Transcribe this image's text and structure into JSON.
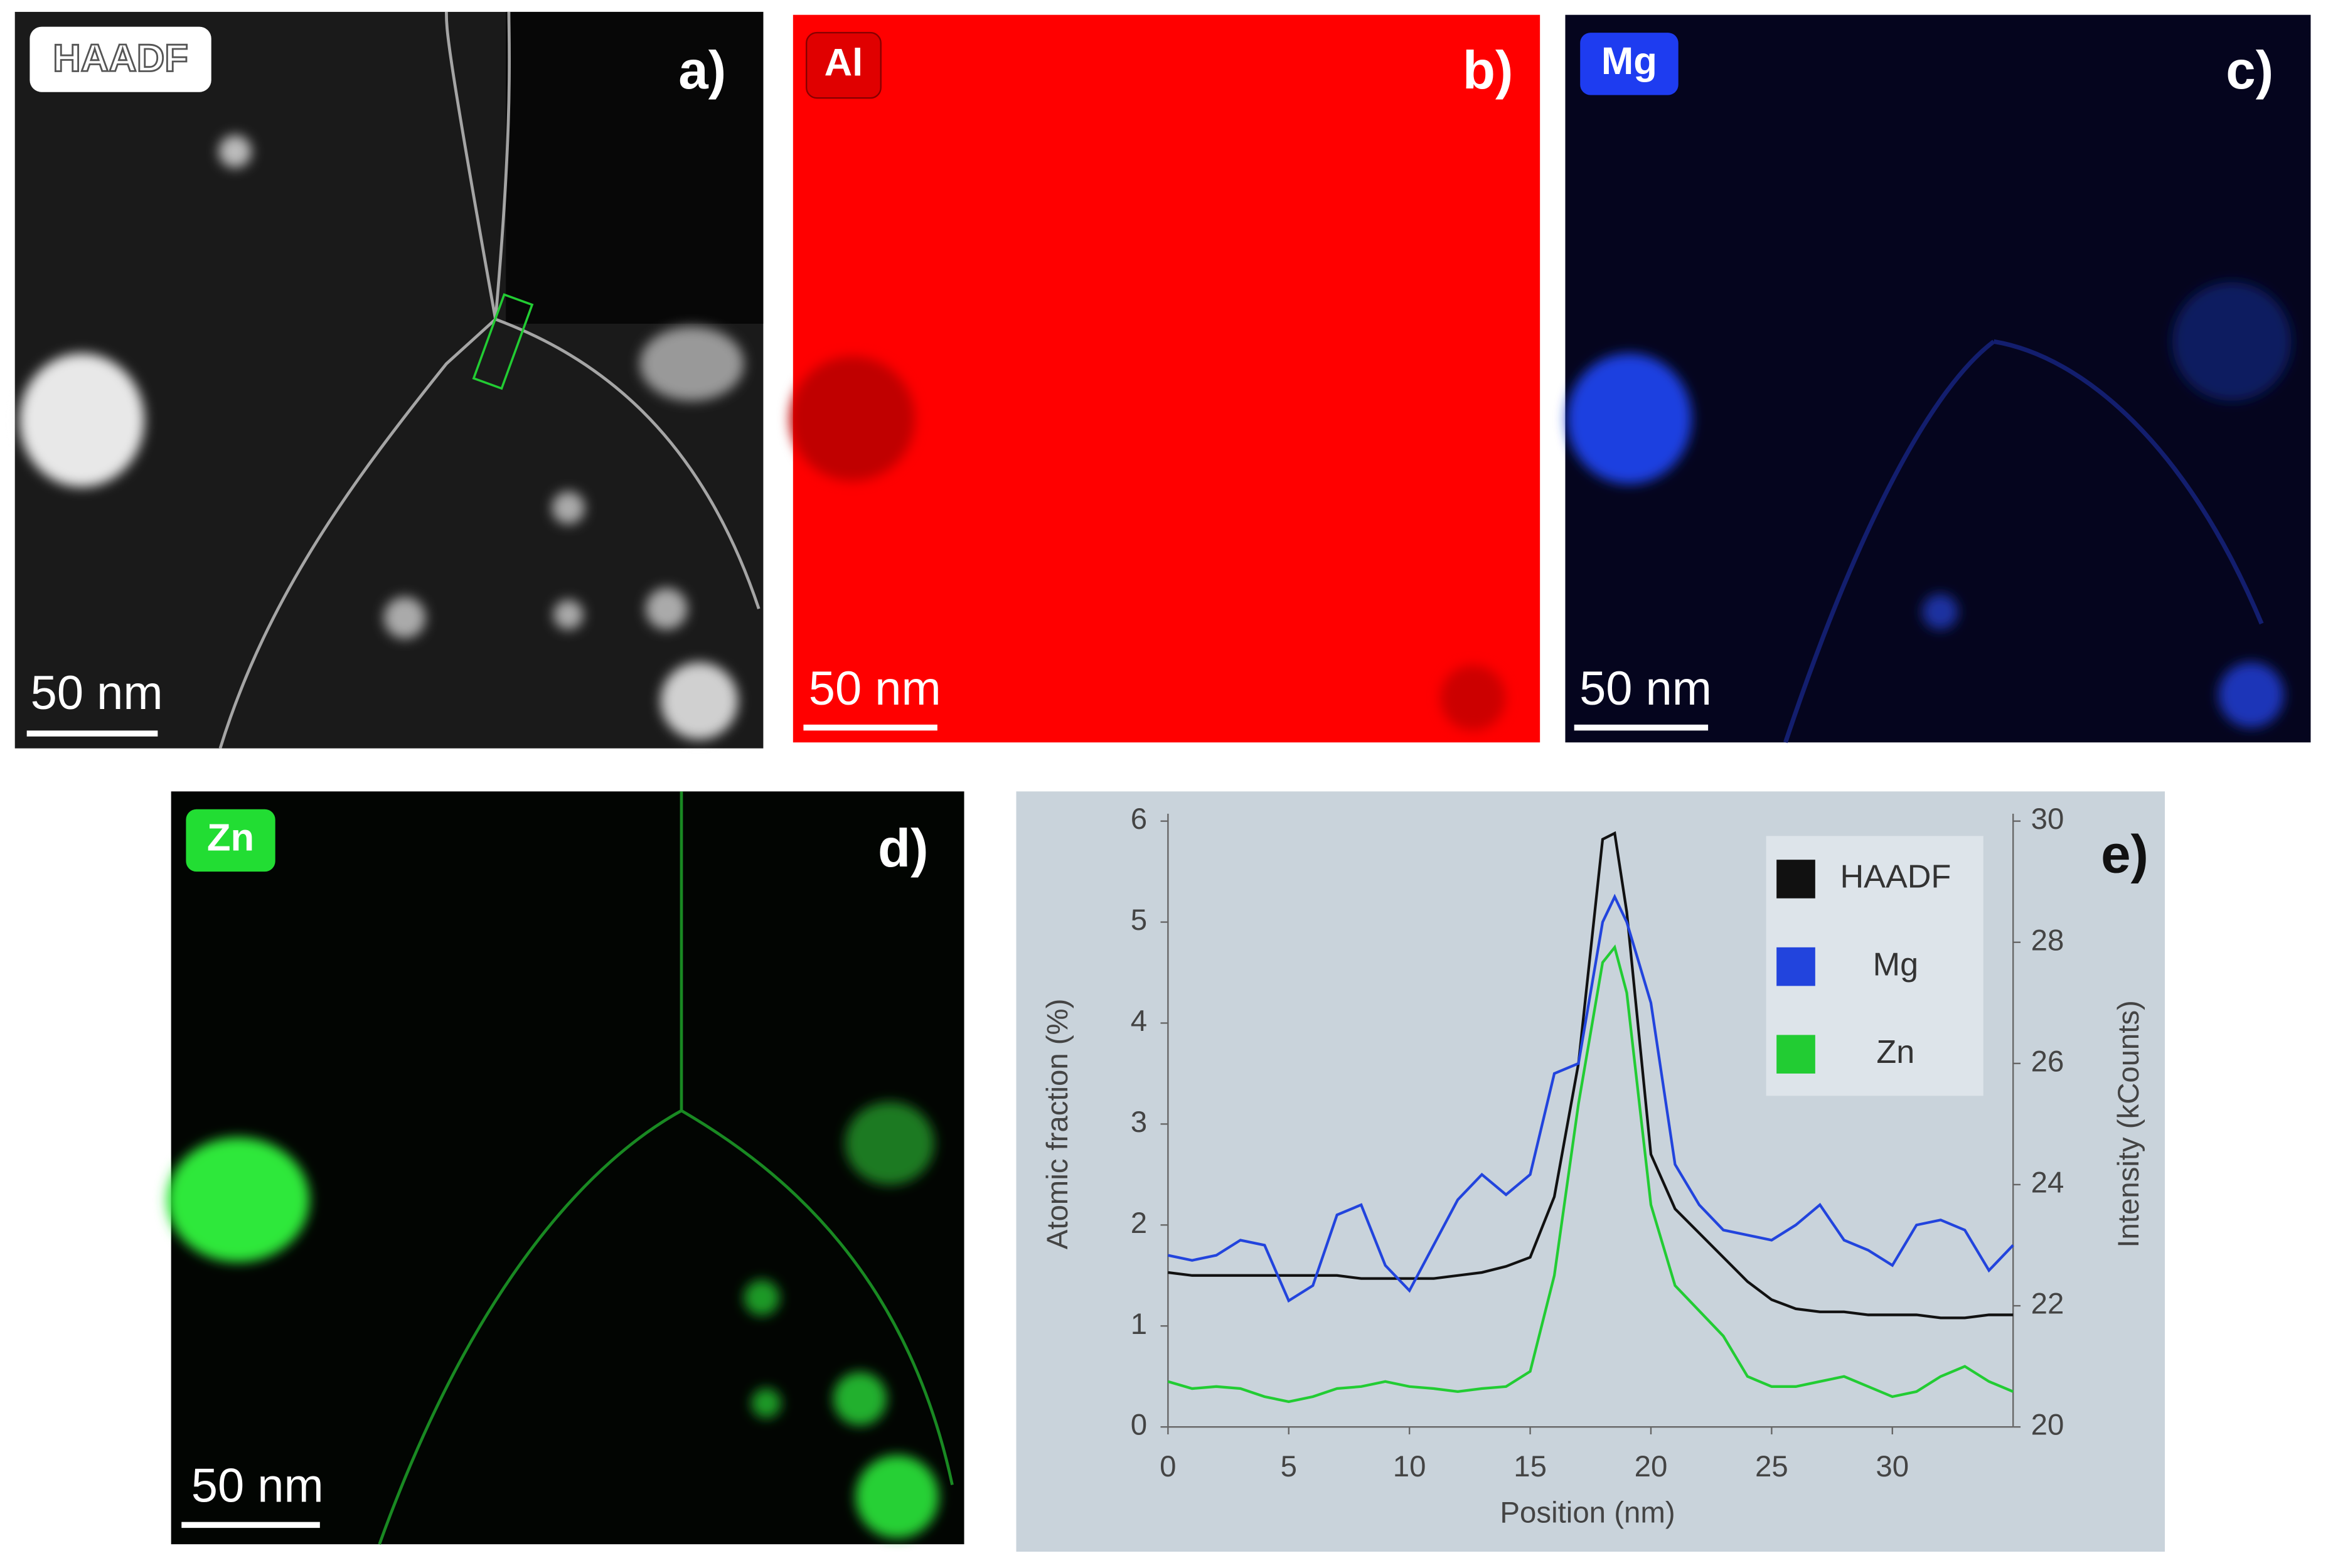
{
  "panels": [
    {
      "badge": "HAADF",
      "letter": "a)",
      "scale_bar": "50 nm"
    },
    {
      "badge": "Al",
      "letter": "b)",
      "scale_bar": "50 nm"
    },
    {
      "badge": "Mg",
      "letter": "c)",
      "scale_bar": "50 nm"
    },
    {
      "badge": "Zn",
      "letter": "d)",
      "scale_bar": "50 nm"
    }
  ],
  "chart_data": {
    "type": "line",
    "panel_label": "e)",
    "x_label": "Position (nm)",
    "y_label": "Atomic fraction (%)",
    "y2_label": "Intensity (kCounts)",
    "x": [
      0,
      1,
      2,
      3,
      4,
      5,
      6,
      7,
      8,
      9,
      10,
      11,
      12,
      13,
      14,
      15,
      16,
      17,
      18,
      18.5,
      19,
      20,
      21,
      22,
      23,
      24,
      25,
      26,
      27,
      28,
      29,
      30,
      31,
      32,
      33,
      34,
      35
    ],
    "xlim": [
      0,
      35
    ],
    "xticks": [
      0,
      5,
      10,
      15,
      20,
      25,
      30
    ],
    "ylim": [
      0,
      6
    ],
    "yticks": [
      0,
      1,
      2,
      3,
      4,
      5,
      6
    ],
    "y2lim": [
      20,
      30
    ],
    "y2ticks": [
      20,
      22,
      24,
      26,
      28,
      30
    ],
    "grid": false,
    "legend": "upper right",
    "series": [
      {
        "name": "HAADF",
        "color": "#111111",
        "axis": "y2",
        "values": [
          22.55,
          22.5,
          22.5,
          22.5,
          22.5,
          22.5,
          22.5,
          22.5,
          22.45,
          22.45,
          22.45,
          22.45,
          22.5,
          22.55,
          22.65,
          22.8,
          23.8,
          26.0,
          29.7,
          29.8,
          28.5,
          24.5,
          23.6,
          23.2,
          22.8,
          22.4,
          22.1,
          21.95,
          21.9,
          21.9,
          21.85,
          21.85,
          21.85,
          21.8,
          21.8,
          21.85,
          21.85
        ]
      },
      {
        "name": "Mg",
        "color": "#2244dd",
        "values": [
          1.7,
          1.65,
          1.7,
          1.85,
          1.8,
          1.25,
          1.4,
          2.1,
          2.2,
          1.6,
          1.35,
          1.8,
          2.25,
          2.5,
          2.3,
          2.5,
          3.5,
          3.6,
          5.0,
          5.25,
          5.0,
          4.2,
          2.6,
          2.2,
          1.95,
          1.9,
          1.85,
          2.0,
          2.2,
          1.85,
          1.75,
          1.6,
          2.0,
          2.05,
          1.95,
          1.55,
          1.8
        ]
      },
      {
        "name": "Zn",
        "color": "#22cc33",
        "values": [
          0.45,
          0.38,
          0.4,
          0.38,
          0.3,
          0.25,
          0.3,
          0.38,
          0.4,
          0.45,
          0.4,
          0.38,
          0.35,
          0.38,
          0.4,
          0.55,
          1.5,
          3.2,
          4.6,
          4.75,
          4.3,
          2.2,
          1.4,
          1.15,
          0.9,
          0.5,
          0.4,
          0.4,
          0.45,
          0.5,
          0.4,
          0.3,
          0.35,
          0.5,
          0.6,
          0.45,
          0.35
        ]
      }
    ]
  }
}
